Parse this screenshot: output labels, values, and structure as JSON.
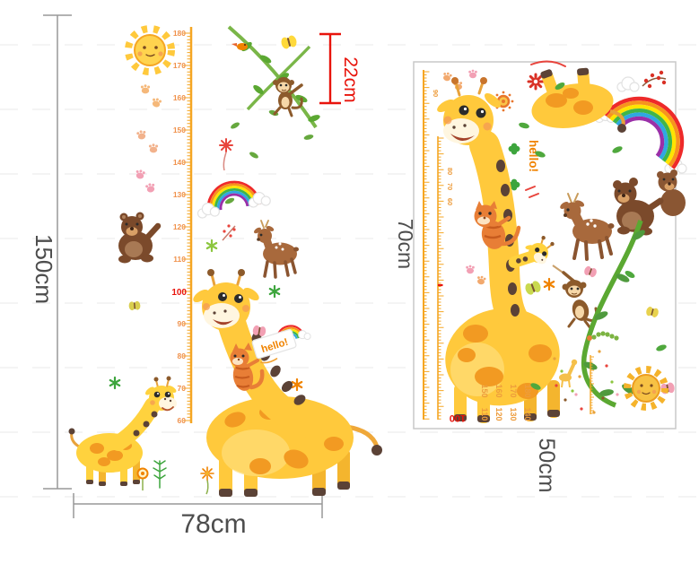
{
  "left_panel": {
    "height_dimension": "150cm",
    "width_dimension": "78cm",
    "top_offset_dimension": "22cm",
    "hello_flag": "hello!",
    "ruler_numbers": [
      "180",
      "170",
      "160",
      "150",
      "140",
      "130",
      "120",
      "110",
      "100",
      "90",
      "80",
      "70",
      "60"
    ]
  },
  "right_panel": {
    "height_dimension": "70cm",
    "width_dimension": "50cm",
    "hello_text": "hello!",
    "ruler_numbers": [
      "90",
      "80",
      "70",
      "60"
    ],
    "spare_numbers_top_row": [
      "150",
      "160",
      "170",
      "180"
    ],
    "spare_numbers_bottom_row": [
      "110",
      "120",
      "130",
      "140"
    ],
    "spare_number_highlight": "100"
  },
  "colors": {
    "dimension_text": "#4d4d4d",
    "dimension_line": "#999999",
    "offset_dimension_red": "#e8140c",
    "ruler_orange": "#f5a623",
    "ruler_number_orange": "#f0914b",
    "giraffe_body": "#ffc93c",
    "giraffe_spots": "#f29a22",
    "hello_orange": "#f08300",
    "vine_green": "#5ba832",
    "bear_brown": "#7b4a2b"
  }
}
